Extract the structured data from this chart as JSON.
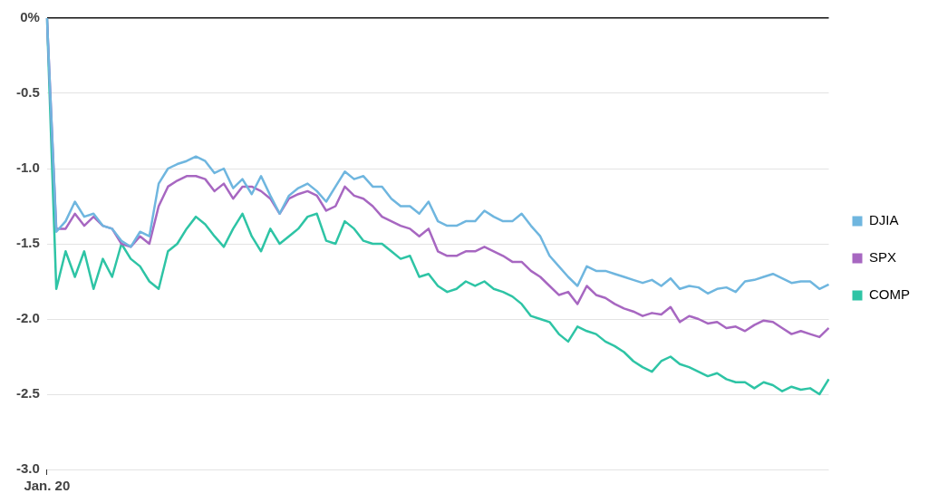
{
  "chart_data": {
    "type": "line",
    "categories": [
      "Jan. 20",
      null,
      null,
      null,
      null,
      null,
      null,
      null,
      null,
      null,
      null,
      null,
      null,
      null,
      null,
      null,
      null,
      null,
      null,
      null,
      null,
      null,
      null,
      null,
      null,
      null,
      null,
      null,
      null,
      null,
      null,
      null,
      null,
      null,
      null,
      null,
      null,
      null,
      null,
      null,
      null,
      null,
      null,
      null,
      null,
      null,
      null,
      null,
      null,
      null,
      null,
      null,
      null,
      null,
      null,
      null,
      null,
      null,
      null,
      null,
      null,
      null,
      null,
      null,
      null,
      null,
      null,
      null,
      null,
      null,
      null,
      null,
      null,
      null,
      null,
      null,
      null,
      null,
      null,
      null,
      null,
      null,
      null,
      null,
      null
    ],
    "series": [
      {
        "name": "DJIA",
        "color": "#6fb6df",
        "values": [
          0,
          -1.42,
          -1.35,
          -1.22,
          -1.32,
          -1.3,
          -1.38,
          -1.4,
          -1.48,
          -1.52,
          -1.42,
          -1.45,
          -1.1,
          -1.0,
          -0.97,
          -0.95,
          -0.92,
          -0.95,
          -1.03,
          -1.0,
          -1.13,
          -1.07,
          -1.17,
          -1.05,
          -1.18,
          -1.3,
          -1.18,
          -1.13,
          -1.1,
          -1.15,
          -1.22,
          -1.12,
          -1.02,
          -1.07,
          -1.05,
          -1.12,
          -1.12,
          -1.2,
          -1.25,
          -1.25,
          -1.3,
          -1.22,
          -1.35,
          -1.38,
          -1.38,
          -1.35,
          -1.35,
          -1.28,
          -1.32,
          -1.35,
          -1.35,
          -1.3,
          -1.38,
          -1.45,
          -1.58,
          -1.65,
          -1.72,
          -1.78,
          -1.65,
          -1.68,
          -1.68,
          -1.7,
          -1.72,
          -1.74,
          -1.76,
          -1.74,
          -1.78,
          -1.73,
          -1.8,
          -1.78,
          -1.79,
          -1.83,
          -1.8,
          -1.79,
          -1.82,
          -1.75,
          -1.74,
          -1.72,
          -1.7,
          -1.73,
          -1.76,
          -1.75,
          -1.75,
          -1.8,
          -1.77
        ]
      },
      {
        "name": "SPX",
        "color": "#a767c1",
        "values": [
          0,
          -1.4,
          -1.4,
          -1.3,
          -1.38,
          -1.32,
          -1.38,
          -1.4,
          -1.5,
          -1.52,
          -1.45,
          -1.5,
          -1.25,
          -1.12,
          -1.08,
          -1.05,
          -1.05,
          -1.07,
          -1.15,
          -1.1,
          -1.2,
          -1.12,
          -1.12,
          -1.15,
          -1.2,
          -1.3,
          -1.2,
          -1.17,
          -1.15,
          -1.18,
          -1.28,
          -1.25,
          -1.12,
          -1.18,
          -1.2,
          -1.25,
          -1.32,
          -1.35,
          -1.38,
          -1.4,
          -1.45,
          -1.4,
          -1.55,
          -1.58,
          -1.58,
          -1.55,
          -1.55,
          -1.52,
          -1.55,
          -1.58,
          -1.62,
          -1.62,
          -1.68,
          -1.72,
          -1.78,
          -1.84,
          -1.82,
          -1.9,
          -1.78,
          -1.84,
          -1.86,
          -1.9,
          -1.93,
          -1.95,
          -1.98,
          -1.96,
          -1.97,
          -1.92,
          -2.02,
          -1.98,
          -2.0,
          -2.03,
          -2.02,
          -2.06,
          -2.05,
          -2.08,
          -2.04,
          -2.01,
          -2.02,
          -2.06,
          -2.1,
          -2.08,
          -2.1,
          -2.12,
          -2.06
        ]
      },
      {
        "name": "COMP",
        "color": "#2ec4a5",
        "values": [
          0,
          -1.8,
          -1.55,
          -1.72,
          -1.55,
          -1.8,
          -1.6,
          -1.72,
          -1.5,
          -1.6,
          -1.65,
          -1.75,
          -1.8,
          -1.55,
          -1.5,
          -1.4,
          -1.32,
          -1.37,
          -1.45,
          -1.52,
          -1.4,
          -1.3,
          -1.45,
          -1.55,
          -1.4,
          -1.5,
          -1.45,
          -1.4,
          -1.32,
          -1.3,
          -1.48,
          -1.5,
          -1.35,
          -1.4,
          -1.48,
          -1.5,
          -1.5,
          -1.55,
          -1.6,
          -1.58,
          -1.72,
          -1.7,
          -1.78,
          -1.82,
          -1.8,
          -1.75,
          -1.78,
          -1.75,
          -1.8,
          -1.82,
          -1.85,
          -1.9,
          -1.98,
          -2.0,
          -2.02,
          -2.1,
          -2.15,
          -2.05,
          -2.08,
          -2.1,
          -2.15,
          -2.18,
          -2.22,
          -2.28,
          -2.32,
          -2.35,
          -2.28,
          -2.25,
          -2.3,
          -2.32,
          -2.35,
          -2.38,
          -2.36,
          -2.4,
          -2.42,
          -2.42,
          -2.46,
          -2.42,
          -2.44,
          -2.48,
          -2.45,
          -2.47,
          -2.46,
          -2.5,
          -2.4
        ]
      }
    ],
    "ylim": [
      -3,
      0
    ],
    "yticks": [
      {
        "value": 0,
        "label": "0%"
      },
      -0.5,
      {
        "value": -1,
        "label": "-1.0"
      },
      -1.5,
      {
        "value": -2,
        "label": "-2.0"
      },
      -2.5,
      {
        "value": -3,
        "label": "-3.0"
      }
    ],
    "grid": "y",
    "legend": "right",
    "marker": "none",
    "line_style": "solid"
  }
}
